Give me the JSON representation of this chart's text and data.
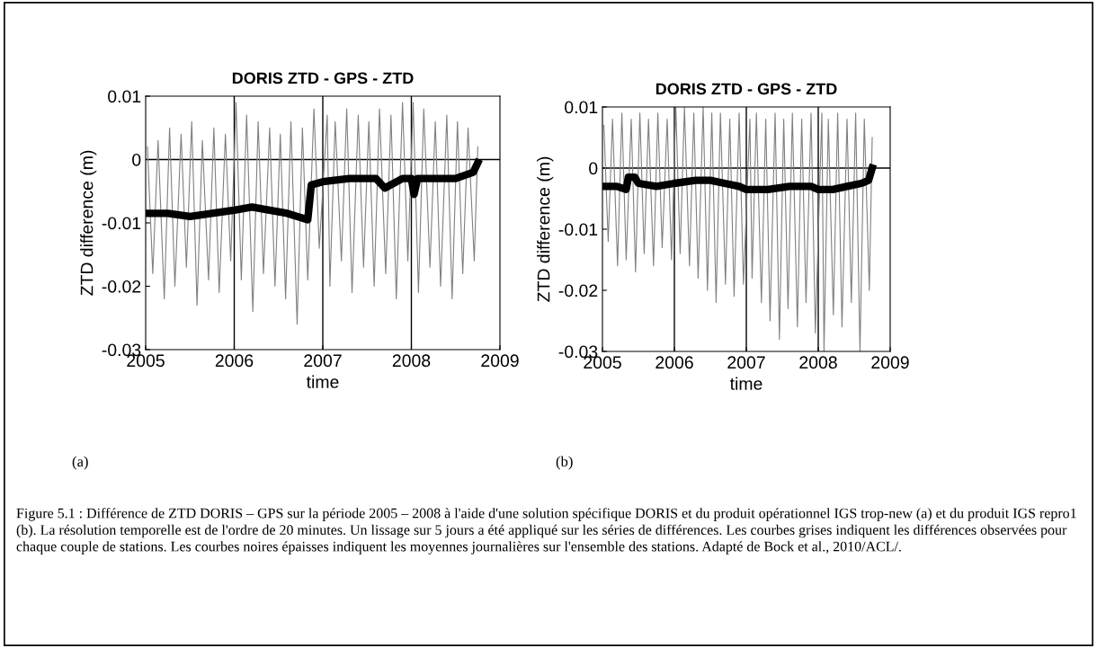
{
  "chart_data": [
    {
      "type": "line",
      "title": "DORIS ZTD - GPS - ZTD",
      "xlabel": "time",
      "ylabel": "ZTD difference (m)",
      "xlim": [
        2005,
        2009
      ],
      "xticks": [
        2005,
        2006,
        2007,
        2008,
        2009
      ],
      "ylim": [
        -0.03,
        0.01
      ],
      "yticks": [
        -0.03,
        -0.02,
        -0.01,
        0,
        0.01
      ],
      "ref_lines": [
        {
          "axis": "y",
          "value": 0,
          "color": "#000000"
        },
        {
          "axis": "x",
          "value": 2006,
          "color": "#000000"
        },
        {
          "axis": "x",
          "value": 2007,
          "color": "#000000"
        },
        {
          "axis": "x",
          "value": 2008,
          "color": "#000000"
        }
      ],
      "annotations": [
        "(a)",
        "Figure 5.1 : Différence de ZTD DORIS – GPS sur la période 2005 – 2008 à l'aide d'une solution spécifique DORIS et du produit opérationnel IGS trop-new (a) et du produit IGS repro1 (b). La résolution temporelle est de l'ordre de 20 minutes. Un lissage sur 5 jours a été appliqué sur les séries de différences. Les courbes grises indiquent les différences observées pour chaque couple de stations. Les courbes noires épaisses indiquent les moyennes journalières sur l'ensemble des stations. Adapté de Bock et al., 2010/ACL/."
      ],
      "series": [
        {
          "color": "#808080",
          "x": [
            2005.02,
            2005.08,
            2005.14,
            2005.21,
            2005.27,
            2005.33,
            2005.4,
            2005.46,
            2005.52,
            2005.58,
            2005.64,
            2005.71,
            2005.77,
            2005.83,
            2005.9,
            2005.96,
            2006.02,
            2006.08,
            2006.14,
            2006.21,
            2006.27,
            2006.33,
            2006.4,
            2006.46,
            2006.52,
            2006.58,
            2006.64,
            2006.71,
            2006.77,
            2006.83,
            2006.9,
            2006.96,
            2007.05,
            2007.08,
            2007.14,
            2007.21,
            2007.27,
            2007.33,
            2007.4,
            2007.46,
            2007.52,
            2007.58,
            2007.64,
            2007.71,
            2007.77,
            2007.83,
            2007.9,
            2007.96,
            2008.02,
            2008.08,
            2008.14,
            2008.21,
            2008.27,
            2008.33,
            2008.4,
            2008.46,
            2008.52,
            2008.58,
            2008.64,
            2008.71,
            2008.75
          ],
          "values": [
            0.002,
            -0.018,
            0.003,
            -0.022,
            0.005,
            -0.02,
            0.004,
            -0.017,
            0.006,
            -0.023,
            0.003,
            -0.019,
            0.005,
            -0.021,
            0.004,
            -0.016,
            0.009,
            -0.019,
            0.007,
            -0.024,
            0.006,
            -0.018,
            0.005,
            -0.02,
            0.004,
            -0.022,
            0.006,
            -0.026,
            0.005,
            -0.019,
            0.008,
            -0.014,
            0.007,
            -0.02,
            0.006,
            -0.016,
            0.008,
            -0.021,
            0.007,
            -0.017,
            0.006,
            -0.02,
            0.008,
            -0.018,
            0.007,
            -0.022,
            0.009,
            -0.016,
            0.009,
            -0.021,
            0.008,
            -0.017,
            0.006,
            -0.02,
            0.007,
            -0.022,
            0.006,
            -0.018,
            0.005,
            -0.016,
            0.002
          ]
        },
        {
          "color": "#000000",
          "x": [
            2005,
            2005.25,
            2005.5,
            2005.75,
            2006,
            2006.2,
            2006.4,
            2006.6,
            2006.83,
            2006.87,
            2007,
            2007.3,
            2007.6,
            2007.7,
            2007.9,
            2008.0,
            2008.03,
            2008.07,
            2008.3,
            2008.5,
            2008.7,
            2008.75
          ],
          "values": [
            -0.0085,
            -0.0085,
            -0.009,
            -0.0085,
            -0.008,
            -0.0075,
            -0.008,
            -0.0085,
            -0.0095,
            -0.004,
            -0.0035,
            -0.003,
            -0.003,
            -0.0045,
            -0.003,
            -0.003,
            -0.0055,
            -0.003,
            -0.003,
            -0.003,
            -0.002,
            -0.0005
          ]
        }
      ]
    },
    {
      "type": "line",
      "title": "DORIS ZTD - GPS - ZTD",
      "xlabel": "time",
      "ylabel": "ZTD difference (m)",
      "xlim": [
        2005,
        2009
      ],
      "xticks": [
        2005,
        2006,
        2007,
        2008,
        2009
      ],
      "ylim": [
        -0.03,
        0.01
      ],
      "yticks": [
        -0.03,
        -0.02,
        -0.01,
        0,
        0.01
      ],
      "ref_lines": [
        {
          "axis": "y",
          "value": 0,
          "color": "#000000"
        },
        {
          "axis": "x",
          "value": 2006,
          "color": "#000000"
        },
        {
          "axis": "x",
          "value": 2007,
          "color": "#000000"
        },
        {
          "axis": "x",
          "value": 2008,
          "color": "#000000"
        }
      ],
      "annotations": [
        "(b)"
      ],
      "series": [
        {
          "color": "#808080",
          "x": [
            2005.02,
            2005.08,
            2005.14,
            2005.21,
            2005.27,
            2005.33,
            2005.4,
            2005.46,
            2005.52,
            2005.58,
            2005.64,
            2005.71,
            2005.77,
            2005.83,
            2005.9,
            2005.96,
            2006.02,
            2006.08,
            2006.14,
            2006.21,
            2006.27,
            2006.33,
            2006.4,
            2006.46,
            2006.52,
            2006.58,
            2006.64,
            2006.71,
            2006.77,
            2006.83,
            2006.9,
            2006.96,
            2007.05,
            2007.08,
            2007.14,
            2007.21,
            2007.27,
            2007.33,
            2007.4,
            2007.46,
            2007.52,
            2007.58,
            2007.64,
            2007.71,
            2007.77,
            2007.83,
            2007.9,
            2007.96,
            2008.05,
            2008.08,
            2008.14,
            2008.21,
            2008.27,
            2008.33,
            2008.4,
            2008.46,
            2008.52,
            2008.58,
            2008.64,
            2008.71,
            2008.75
          ],
          "values": [
            0.007,
            -0.012,
            0.008,
            -0.016,
            0.009,
            -0.015,
            0.008,
            -0.017,
            0.009,
            -0.014,
            0.008,
            -0.016,
            0.009,
            -0.013,
            0.008,
            -0.015,
            0.01,
            -0.014,
            0.01,
            -0.016,
            0.009,
            -0.018,
            0.01,
            -0.02,
            0.009,
            -0.022,
            0.009,
            -0.019,
            0.008,
            -0.021,
            0.009,
            -0.019,
            0.008,
            -0.018,
            0.009,
            -0.022,
            0.008,
            -0.025,
            0.009,
            -0.028,
            0.008,
            -0.023,
            0.009,
            -0.026,
            0.008,
            -0.022,
            0.009,
            -0.027,
            0.009,
            -0.03,
            0.008,
            -0.024,
            0.009,
            -0.026,
            0.008,
            -0.022,
            0.009,
            -0.03,
            0.008,
            -0.02,
            0.005
          ]
        },
        {
          "color": "#000000",
          "x": [
            2005,
            2005.2,
            2005.33,
            2005.36,
            2005.45,
            2005.5,
            2005.75,
            2006,
            2006.3,
            2006.5,
            2006.7,
            2006.9,
            2007,
            2007.3,
            2007.6,
            2007.9,
            2008,
            2008.2,
            2008.4,
            2008.6,
            2008.7,
            2008.75
          ],
          "values": [
            -0.003,
            -0.003,
            -0.0035,
            -0.0015,
            -0.0015,
            -0.0025,
            -0.003,
            -0.0025,
            -0.002,
            -0.002,
            -0.0025,
            -0.003,
            -0.0035,
            -0.0035,
            -0.003,
            -0.003,
            -0.0035,
            -0.0035,
            -0.003,
            -0.0025,
            -0.002,
            0
          ]
        }
      ]
    }
  ]
}
